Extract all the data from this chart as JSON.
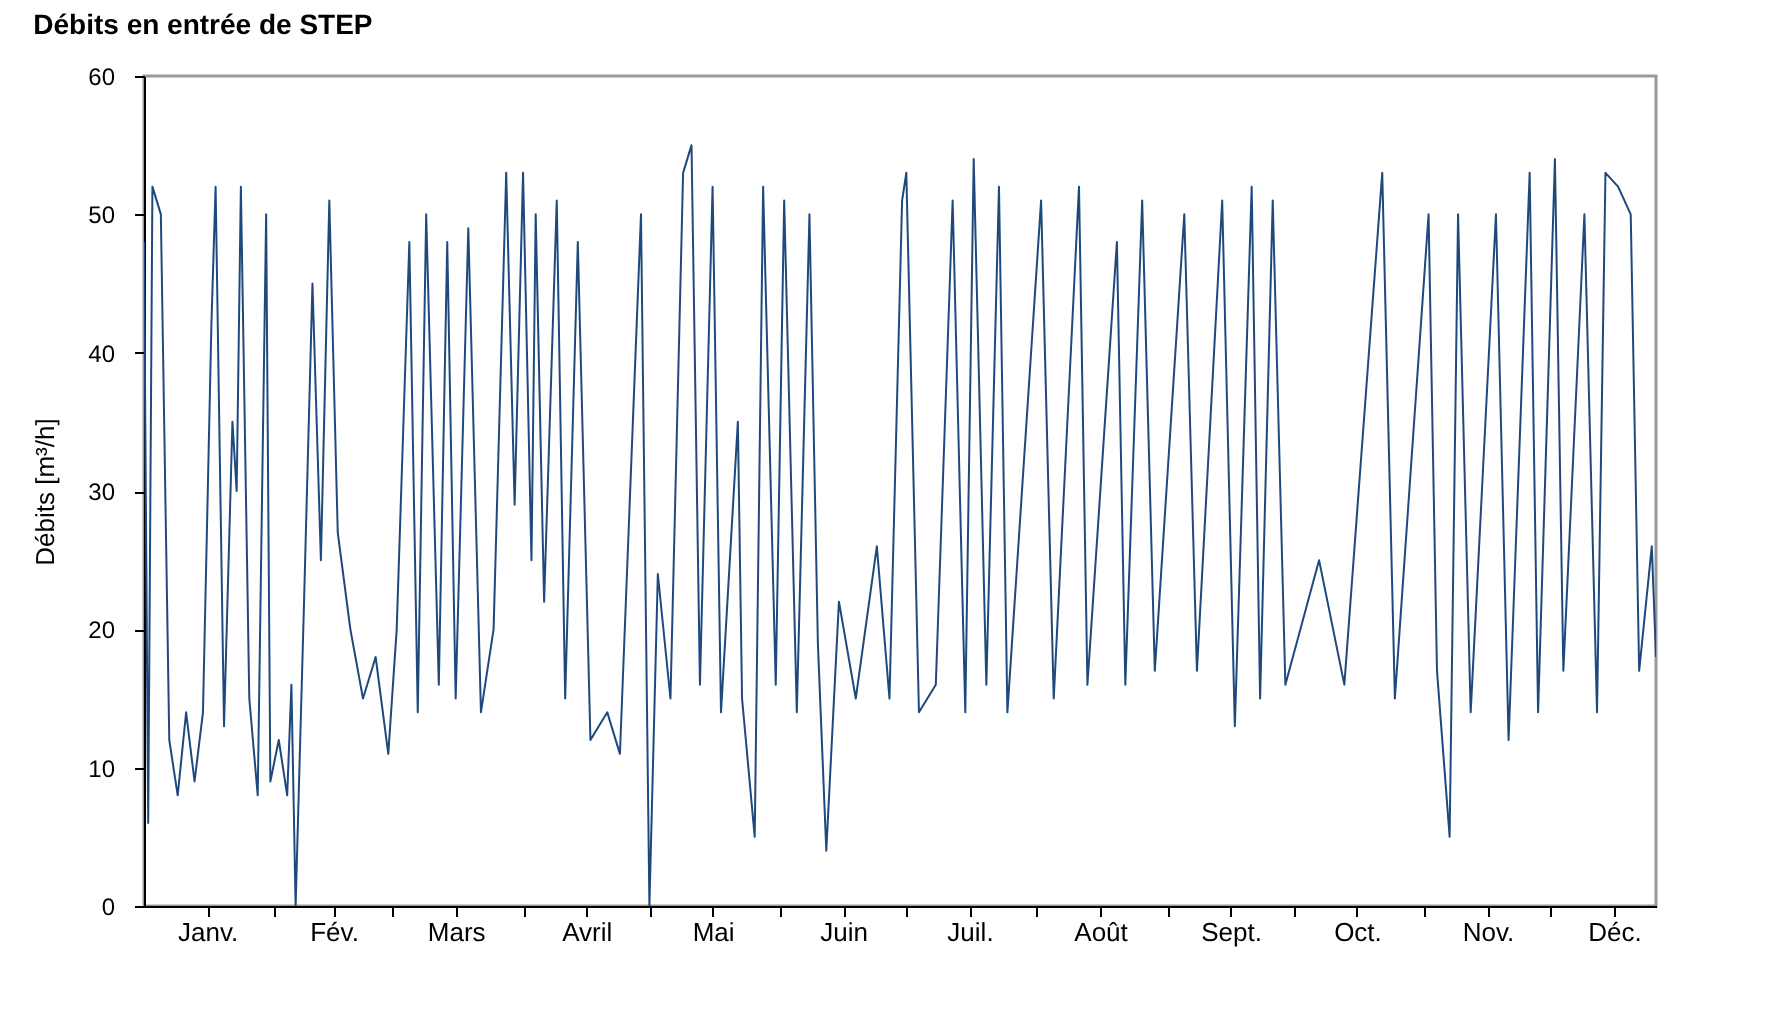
{
  "chart_data": {
    "type": "line",
    "title": "Débits en entrée de STEP",
    "ylabel": "Débits [m³/h]",
    "xlim": [
      "--01-01",
      "--12-26"
    ],
    "xticks": [
      {
        "value": "--01-16",
        "label": "Janv."
      },
      {
        "value": "--02-01",
        "label": null
      },
      {
        "value": "--02-15",
        "label": "Fév."
      },
      {
        "value": "--03-01",
        "label": null
      },
      {
        "value": "--03-16",
        "label": "Mars"
      },
      {
        "value": "--04-01",
        "label": null
      },
      {
        "value": "--04-16",
        "label": "Avril"
      },
      {
        "value": "--05-01",
        "label": null
      },
      {
        "value": "--05-16",
        "label": "Mai"
      },
      {
        "value": "--06-01",
        "label": null
      },
      {
        "value": "--06-16",
        "label": "Juin"
      },
      {
        "value": "--07-01",
        "label": null
      },
      {
        "value": "--07-16",
        "label": "Juil."
      },
      {
        "value": "--08-01",
        "label": null
      },
      {
        "value": "--08-16",
        "label": "Août"
      },
      {
        "value": "--09-01",
        "label": null
      },
      {
        "value": "--09-16",
        "label": "Sept."
      },
      {
        "value": "--10-01",
        "label": null
      },
      {
        "value": "--10-16",
        "label": "Oct."
      },
      {
        "value": "--11-01",
        "label": null
      },
      {
        "value": "--11-16",
        "label": "Nov."
      },
      {
        "value": "--12-01",
        "label": null
      },
      {
        "value": "--12-16",
        "label": "Déc."
      }
    ],
    "ylim": [
      0,
      60
    ],
    "yticks": [
      0,
      10,
      20,
      30,
      40,
      50,
      60
    ],
    "grid": false,
    "line_style": "solid",
    "series": [
      {
        "color": "#1f497d",
        "x": [
          "--01-01",
          "--01-02",
          "--01-03",
          "--01-05",
          "--01-07",
          "--01-09",
          "--01-11",
          "--01-13",
          "--01-15",
          "--01-17",
          "--01-18",
          "--01-20",
          "--01-22",
          "--01-23",
          "--01-24",
          "--01-26",
          "--01-28",
          "--01-30",
          "--01-31",
          "--02-02",
          "--02-04",
          "--02-05",
          "--02-06",
          "--02-08",
          "--02-10",
          "--02-12",
          "--02-14",
          "--02-16",
          "--02-19",
          "--02-22",
          "--02-25",
          "--02-28",
          "--03-02",
          "--03-05",
          "--03-07",
          "--03-09",
          "--03-12",
          "--03-14",
          "--03-16",
          "--03-19",
          "--03-22",
          "--03-25",
          "--03-28",
          "--03-30",
          "--04-01",
          "--04-03",
          "--04-04",
          "--04-06",
          "--04-09",
          "--04-11",
          "--04-14",
          "--04-17",
          "--04-21",
          "--04-24",
          "--04-29",
          "--05-01",
          "--05-03",
          "--05-06",
          "--05-09",
          "--05-11",
          "--05-13",
          "--05-16",
          "--05-18",
          "--05-22",
          "--05-23",
          "--05-26",
          "--05-28",
          "--05-31",
          "--06-02",
          "--06-05",
          "--06-08",
          "--06-10",
          "--06-12",
          "--06-15",
          "--06-19",
          "--06-24",
          "--06-27",
          "--06-30",
          "--07-01",
          "--07-04",
          "--07-08",
          "--07-12",
          "--07-15",
          "--07-17",
          "--07-20",
          "--07-23",
          "--07-25",
          "--08-02",
          "--08-05",
          "--08-11",
          "--08-13",
          "--08-20",
          "--08-22",
          "--08-26",
          "--08-29",
          "--09-05",
          "--09-08",
          "--09-14",
          "--09-17",
          "--09-21",
          "--09-23",
          "--09-26",
          "--09-29",
          "--10-07",
          "--10-13",
          "--10-22",
          "--10-25",
          "--11-02",
          "--11-04",
          "--11-07",
          "--11-09",
          "--11-12",
          "--11-18",
          "--11-21",
          "--11-26",
          "--11-28",
          "--12-02",
          "--12-04",
          "--12-09",
          "--12-12",
          "--12-14",
          "--12-17",
          "--12-20",
          "--12-22",
          "--12-25",
          "--12-26"
        ],
        "values": [
          48,
          6,
          52,
          50,
          12,
          8,
          14,
          9,
          14,
          42,
          52,
          13,
          35,
          30,
          52,
          15,
          8,
          50,
          9,
          12,
          8,
          16,
          0,
          22,
          45,
          25,
          51,
          27,
          20,
          15,
          18,
          11,
          20,
          48,
          14,
          50,
          16,
          48,
          15,
          49,
          14,
          20,
          53,
          29,
          53,
          25,
          50,
          22,
          51,
          15,
          48,
          12,
          14,
          11,
          50,
          0,
          24,
          15,
          53,
          55,
          16,
          52,
          14,
          35,
          15,
          5,
          52,
          16,
          51,
          14,
          50,
          19,
          4,
          22,
          15,
          26,
          15,
          51,
          53,
          14,
          16,
          51,
          14,
          54,
          16,
          52,
          14,
          51,
          15,
          52,
          16,
          48,
          16,
          51,
          17,
          50,
          17,
          51,
          13,
          52,
          15,
          51,
          16,
          25,
          16,
          53,
          15,
          50,
          17,
          5,
          50,
          14,
          50,
          12,
          53,
          14,
          54,
          17,
          50,
          14,
          53,
          52,
          50,
          17,
          26,
          18
        ]
      }
    ]
  }
}
